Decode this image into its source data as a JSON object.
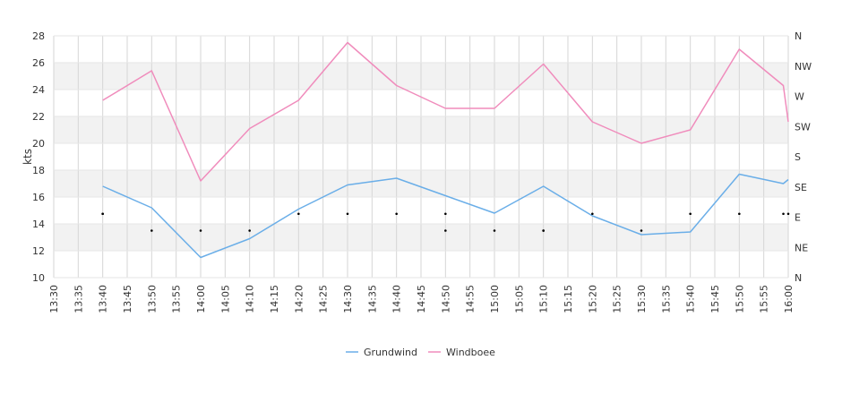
{
  "chart_data": {
    "type": "line",
    "ylabel": "kts",
    "ylim": [
      10,
      28
    ],
    "yticks": [
      10,
      12,
      14,
      16,
      18,
      20,
      22,
      24,
      26,
      28
    ],
    "x_ticks": [
      "13:30",
      "13:35",
      "13:40",
      "13:45",
      "13:50",
      "13:55",
      "14:00",
      "14:05",
      "14:10",
      "14:15",
      "14:20",
      "14:25",
      "14:30",
      "14:35",
      "14:40",
      "14:45",
      "14:50",
      "14:55",
      "15:00",
      "15:05",
      "15:10",
      "15:15",
      "15:20",
      "15:25",
      "15:30",
      "15:35",
      "15:40",
      "15:45",
      "15:50",
      "15:55",
      "16:00"
    ],
    "x_range": [
      "13:30",
      "16:00"
    ],
    "direction_axis": {
      "labels": [
        "N",
        "NE",
        "E",
        "SE",
        "S",
        "SW",
        "W",
        "NW",
        "N"
      ],
      "range_deg": [
        0,
        360
      ]
    },
    "grid": true,
    "band_color": "#f2f2f2",
    "legend_position": "bottom",
    "series": [
      {
        "name": "Grundwind",
        "color": "#6aaee8",
        "x": [
          "13:40",
          "13:50",
          "14:00",
          "14:10",
          "14:20",
          "14:30",
          "14:40",
          "14:50",
          "15:00",
          "15:10",
          "15:20",
          "15:30",
          "15:40",
          "15:50",
          "15:59",
          "16:00"
        ],
        "values": [
          16.8,
          15.2,
          11.5,
          12.9,
          15.1,
          16.9,
          17.4,
          16.1,
          14.8,
          16.8,
          14.6,
          13.2,
          13.4,
          17.7,
          17.0,
          17.3
        ]
      },
      {
        "name": "Windboee",
        "color": "#f08cbc",
        "x": [
          "13:40",
          "13:50",
          "14:00",
          "14:10",
          "14:20",
          "14:30",
          "14:40",
          "14:50",
          "15:00",
          "15:10",
          "15:20",
          "15:30",
          "15:40",
          "15:50",
          "15:59",
          "16:00"
        ],
        "values": [
          23.2,
          25.4,
          17.2,
          21.1,
          23.2,
          27.5,
          24.3,
          22.6,
          22.6,
          25.9,
          21.6,
          20.0,
          21.0,
          27.0,
          24.3,
          21.6
        ]
      }
    ],
    "direction_points": {
      "x": [
        "13:40",
        "13:40",
        "13:50",
        "14:00",
        "14:10",
        "14:20",
        "14:30",
        "14:40",
        "14:50",
        "14:50",
        "15:00",
        "15:10",
        "15:10",
        "15:20",
        "15:30",
        "15:40",
        "15:50",
        "15:59",
        "16:00"
      ],
      "values_deg": [
        95,
        95,
        70,
        70,
        70,
        95,
        95,
        95,
        95,
        70,
        70,
        70,
        70,
        95,
        70,
        95,
        95,
        95,
        95
      ]
    },
    "markers": {
      "grundwind_value_deg": [
        95,
        70,
        70,
        70,
        95,
        95,
        95,
        70,
        70,
        70,
        95,
        70,
        95,
        95,
        95,
        95
      ]
    }
  }
}
